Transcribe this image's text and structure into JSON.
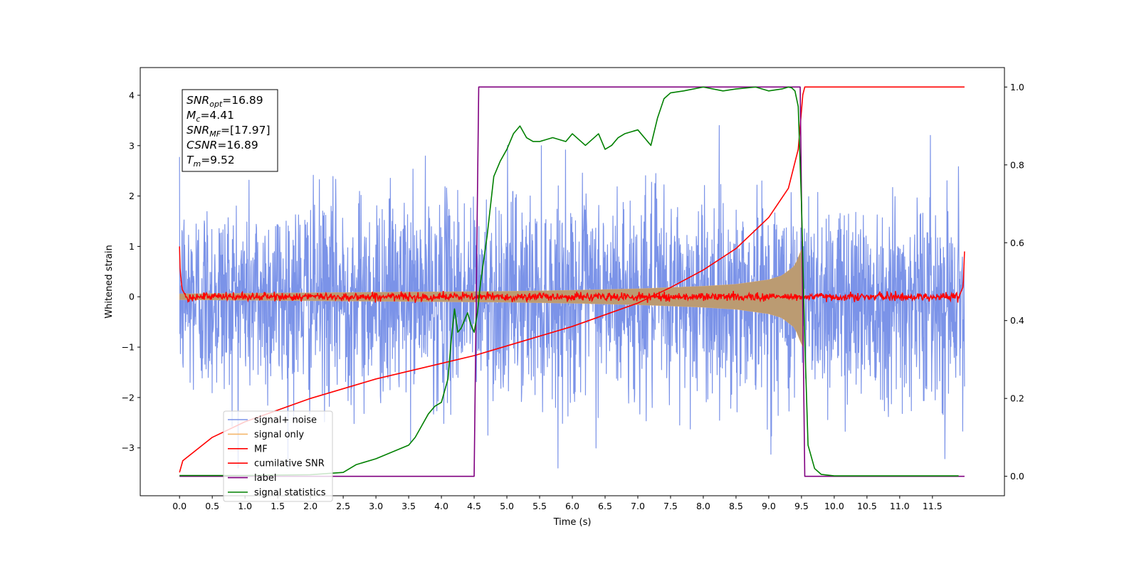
{
  "chart_data": {
    "type": "line",
    "title": "",
    "xlabel": "Time (s)",
    "ylabel": "Whitened strain",
    "y2label": "",
    "xlim": [
      -0.6,
      12.6
    ],
    "ylim": [
      -3.95,
      4.55
    ],
    "y2lim": [
      -0.05,
      1.05
    ],
    "x_ticks": [
      0.0,
      0.5,
      1.0,
      1.5,
      2.0,
      2.5,
      3.0,
      3.5,
      4.0,
      4.5,
      5.0,
      5.5,
      6.0,
      6.5,
      7.0,
      7.5,
      8.0,
      8.5,
      9.0,
      9.5,
      10.0,
      10.5,
      11.0,
      11.5
    ],
    "x_tick_labels": [
      "0.0",
      "0.5",
      "1.0",
      "1.5",
      "2.0",
      "2.5",
      "3.0",
      "3.5",
      "4.0",
      "4.5",
      "5.0",
      "5.5",
      "6.0",
      "6.5",
      "7.0",
      "7.5",
      "8.0",
      "8.5",
      "9.0",
      "9.5",
      "10.0",
      "10.5",
      "11.0",
      "11.5"
    ],
    "y_ticks": [
      -3,
      -2,
      -1,
      0,
      1,
      2,
      3,
      4
    ],
    "y_tick_labels": [
      "−3",
      "−2",
      "−1",
      "0",
      "1",
      "2",
      "3",
      "4"
    ],
    "y2_ticks": [
      0.0,
      0.2,
      0.4,
      0.6,
      0.8,
      1.0
    ],
    "y2_tick_labels": [
      "0.0",
      "0.2",
      "0.4",
      "0.6",
      "0.8",
      "1.0"
    ],
    "grid": false,
    "legend_position": "lower-left",
    "annotation": [
      {
        "sym": "SNR",
        "sub": "opt",
        "value": "=16.89"
      },
      {
        "sym": "M",
        "sub": "c",
        "value": "=4.41"
      },
      {
        "sym": "SNR",
        "sub": "MF",
        "value": "=[17.97]"
      },
      {
        "sym": "CSNR",
        "sub": "",
        "value": "=16.89"
      },
      {
        "sym": "T",
        "sub": "m",
        "value": "=9.52"
      }
    ],
    "series": [
      {
        "name": "signal+ noise",
        "axis": "left",
        "color": "#7b93e8",
        "style": "noise-fill",
        "noise_sigma": 1.0,
        "x_range": [
          0.0,
          11.99
        ]
      },
      {
        "name": "signal only",
        "axis": "left",
        "color": "#f5b66a",
        "style": "chirp-envelope",
        "x_range": [
          0.0,
          9.52
        ],
        "envelope_x": [
          0.0,
          2.0,
          4.0,
          5.0,
          6.0,
          7.0,
          8.0,
          8.5,
          9.0,
          9.2,
          9.4,
          9.5,
          9.52
        ],
        "envelope_y": [
          0.06,
          0.08,
          0.1,
          0.11,
          0.13,
          0.16,
          0.21,
          0.25,
          0.34,
          0.42,
          0.62,
          0.95,
          1.0
        ]
      },
      {
        "name": "MF",
        "axis": "left",
        "color": "#ff0000",
        "style": "noisy-line",
        "baseline": 0.0,
        "noise_amplitude": 0.05,
        "x": [
          0.0,
          0.01,
          0.04,
          0.08,
          11.92,
          11.97,
          11.99
        ],
        "y": [
          1.0,
          0.5,
          0.15,
          0.05,
          0.05,
          0.2,
          0.9
        ]
      },
      {
        "name": "cumilative SNR",
        "axis": "right",
        "color": "#ff0000",
        "style": "line",
        "x": [
          0.0,
          0.05,
          0.5,
          1.0,
          2.0,
          3.0,
          4.0,
          4.5,
          5.0,
          6.0,
          7.0,
          7.5,
          8.0,
          8.5,
          9.0,
          9.3,
          9.45,
          9.52,
          9.55,
          11.99
        ],
        "y": [
          0.01,
          0.04,
          0.1,
          0.14,
          0.2,
          0.25,
          0.29,
          0.31,
          0.335,
          0.385,
          0.445,
          0.485,
          0.53,
          0.585,
          0.665,
          0.74,
          0.84,
          0.98,
          1.0,
          1.0
        ]
      },
      {
        "name": "label",
        "axis": "right",
        "color": "#800080",
        "style": "line",
        "x": [
          0.0,
          4.5,
          4.57,
          9.48,
          9.55,
          11.99
        ],
        "y": [
          0.0,
          0.0,
          1.0,
          1.0,
          0.0,
          0.0
        ]
      },
      {
        "name": "signal statistics",
        "axis": "right",
        "color": "#008000",
        "style": "line",
        "x": [
          0.0,
          1.0,
          2.0,
          2.5,
          2.7,
          3.0,
          3.5,
          3.6,
          3.7,
          3.8,
          3.9,
          4.0,
          4.1,
          4.15,
          4.2,
          4.25,
          4.3,
          4.4,
          4.45,
          4.5,
          4.55,
          4.6,
          4.7,
          4.8,
          4.9,
          5.0,
          5.1,
          5.2,
          5.3,
          5.4,
          5.5,
          5.7,
          5.9,
          6.0,
          6.2,
          6.4,
          6.5,
          6.6,
          6.7,
          6.8,
          7.0,
          7.1,
          7.2,
          7.3,
          7.4,
          7.5,
          7.7,
          8.0,
          8.3,
          8.5,
          8.8,
          9.0,
          9.2,
          9.3,
          9.35,
          9.4,
          9.45,
          9.5,
          9.55,
          9.6,
          9.7,
          9.8,
          10.0,
          11.9
        ],
        "y": [
          0.002,
          0.002,
          0.004,
          0.01,
          0.03,
          0.045,
          0.08,
          0.1,
          0.13,
          0.16,
          0.18,
          0.19,
          0.25,
          0.35,
          0.43,
          0.37,
          0.38,
          0.42,
          0.39,
          0.37,
          0.42,
          0.5,
          0.62,
          0.77,
          0.81,
          0.84,
          0.88,
          0.9,
          0.87,
          0.86,
          0.86,
          0.87,
          0.86,
          0.88,
          0.85,
          0.88,
          0.84,
          0.85,
          0.87,
          0.88,
          0.89,
          0.87,
          0.85,
          0.92,
          0.97,
          0.985,
          0.99,
          1.0,
          0.99,
          0.995,
          1.0,
          0.99,
          0.995,
          1.0,
          0.998,
          0.99,
          0.95,
          0.7,
          0.35,
          0.08,
          0.02,
          0.005,
          0.001,
          0.001
        ]
      }
    ]
  }
}
